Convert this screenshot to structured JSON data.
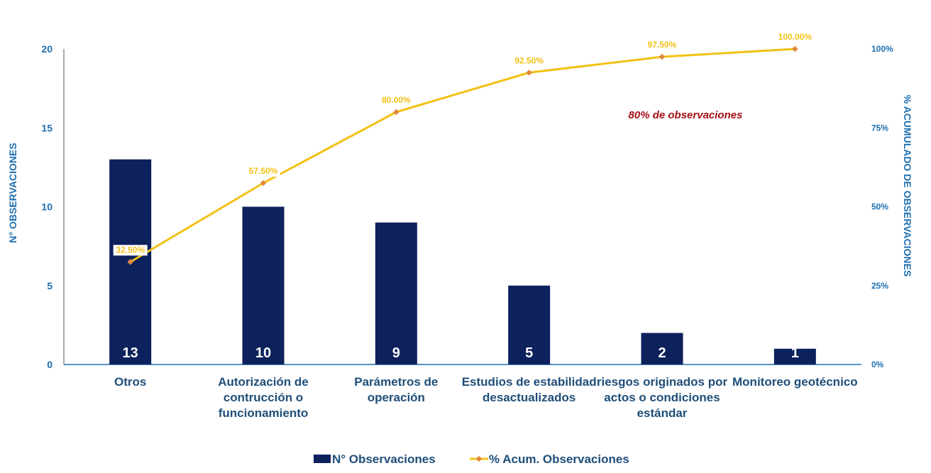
{
  "chart_data": {
    "type": "bar",
    "categories": [
      [
        "Otros"
      ],
      [
        "Autorización de",
        "contrucción o",
        "funcionamiento"
      ],
      [
        "Parámetros de",
        "operación"
      ],
      [
        "Estudios de estabilidad",
        "desactualizados"
      ],
      [
        "riesgos originados por",
        "actos o condiciones",
        "estándar"
      ],
      [
        "Monitoreo geotécnico"
      ]
    ],
    "series": [
      {
        "name": "N° Observaciones",
        "type": "bar",
        "axis": "left",
        "values": [
          13,
          10,
          9,
          5,
          2,
          1
        ],
        "data_labels": [
          "13",
          "10",
          "9",
          "5",
          "2",
          "1"
        ],
        "color": "#0d215c"
      },
      {
        "name": "% Acum. Observaciones",
        "type": "line",
        "axis": "right",
        "values": [
          32.5,
          57.5,
          80.0,
          92.5,
          97.5,
          100.0
        ],
        "data_labels": [
          "32.50%",
          "57.50%",
          "80.00%",
          "92.50%",
          "97.50%",
          "100.00%"
        ],
        "color": "#f2c115",
        "marker_color": "#e2883b"
      }
    ],
    "ylabel": "N° OBSERVACIONES",
    "y2label": "% ACUMULADO DE OBSERVACIONES",
    "ylim": [
      0,
      20
    ],
    "y2lim": [
      0,
      100
    ],
    "yticks": [
      "0",
      "5",
      "10",
      "15",
      "20"
    ],
    "y2ticks": [
      "0%",
      "25%",
      "50%",
      "75%",
      "100%"
    ],
    "annotation": "80% de observaciones",
    "annotation_color": "#a50f15",
    "axis_text_color": "#1f6fb0",
    "category_text_color": "#1f4e79",
    "legend_position": "bottom",
    "grid": false
  }
}
